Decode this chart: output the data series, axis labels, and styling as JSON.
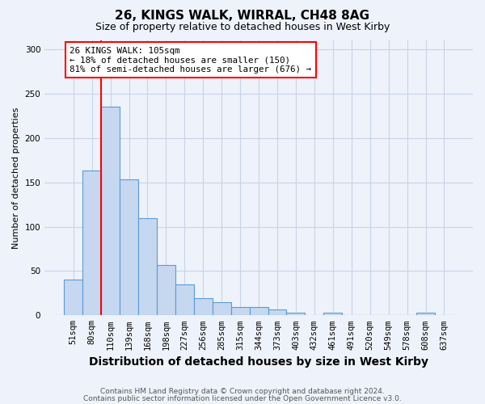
{
  "title1": "26, KINGS WALK, WIRRAL, CH48 8AG",
  "title2": "Size of property relative to detached houses in West Kirby",
  "xlabel": "Distribution of detached houses by size in West Kirby",
  "ylabel": "Number of detached properties",
  "categories": [
    "51sqm",
    "80sqm",
    "110sqm",
    "139sqm",
    "168sqm",
    "198sqm",
    "227sqm",
    "256sqm",
    "285sqm",
    "315sqm",
    "344sqm",
    "373sqm",
    "403sqm",
    "432sqm",
    "461sqm",
    "491sqm",
    "520sqm",
    "549sqm",
    "578sqm",
    "608sqm",
    "637sqm"
  ],
  "values": [
    40,
    163,
    235,
    153,
    110,
    57,
    35,
    19,
    15,
    9,
    9,
    7,
    3,
    0,
    3,
    0,
    0,
    0,
    0,
    3,
    0
  ],
  "bar_color": "#c5d8f0",
  "bar_edge_color": "#5b9bd5",
  "grid_color": "#c8d4e8",
  "vline_color": "red",
  "vline_x": 1.5,
  "annotation_text": "26 KINGS WALK: 105sqm\n← 18% of detached houses are smaller (150)\n81% of semi-detached houses are larger (676) →",
  "annotation_box_color": "white",
  "annotation_box_edge": "red",
  "ylim": [
    0,
    310
  ],
  "yticks": [
    0,
    50,
    100,
    150,
    200,
    250,
    300
  ],
  "footer1": "Contains HM Land Registry data © Crown copyright and database right 2024.",
  "footer2": "Contains public sector information licensed under the Open Government Licence v3.0.",
  "background_color": "#eef2fa",
  "axes_background": "#eef2fa",
  "title1_fontsize": 11,
  "title2_fontsize": 9,
  "xlabel_fontsize": 10,
  "ylabel_fontsize": 8,
  "tick_fontsize": 7.5,
  "footer_fontsize": 6.5
}
